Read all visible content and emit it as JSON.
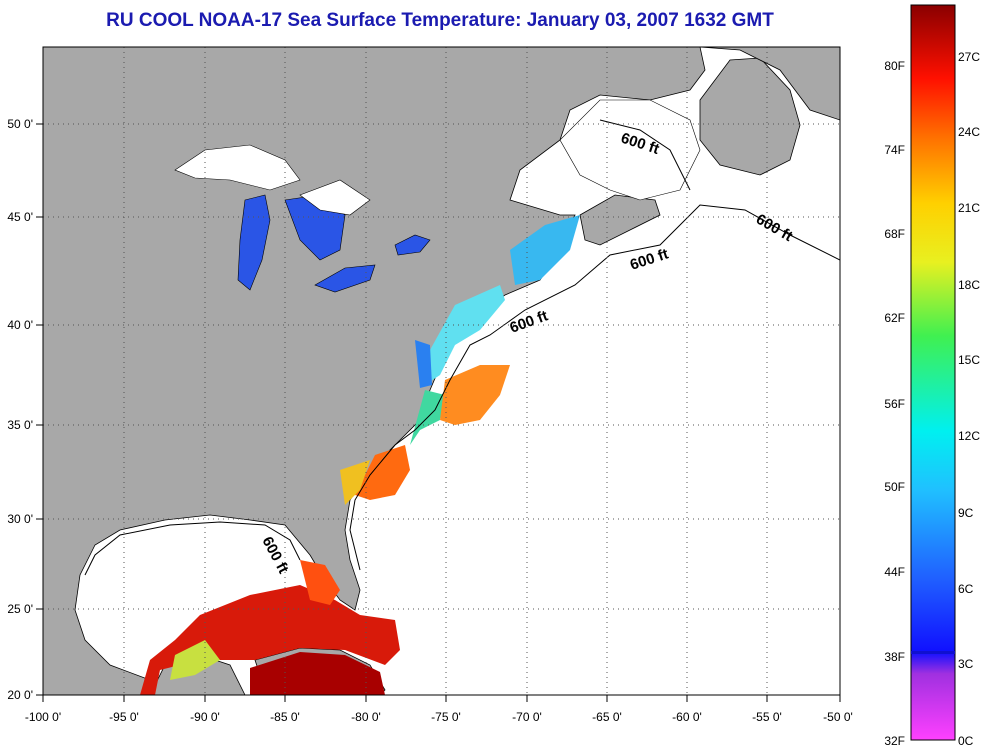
{
  "title": "RU COOL  NOAA-17  Sea Surface Temperature:  January 03, 2007 1632 GMT",
  "map": {
    "lon_ticks": [
      "-100 0'",
      "-95 0'",
      "-90 0'",
      "-85 0'",
      "-80 0'",
      "-75 0'",
      "-70 0'",
      "-65 0'",
      "-60 0'",
      "-55 0'",
      "-50 0'"
    ],
    "lat_ticks": [
      "50 0'",
      "45 0'",
      "40 0'",
      "35 0'",
      "30 0'",
      "25 0'",
      "20 0'"
    ],
    "contour_labels": [
      "600 ft",
      "600 ft",
      "600 ft",
      "600 ft",
      "600 ft"
    ],
    "land_color": "#a8a8a8",
    "ocean_nodata_color": "#ffffff"
  },
  "colorbar": {
    "fahrenheit_labels": [
      "80F",
      "74F",
      "68F",
      "62F",
      "56F",
      "50F",
      "44F",
      "38F",
      "32F"
    ],
    "celsius_labels": [
      "27C",
      "24C",
      "21C",
      "18C",
      "15C",
      "12C",
      "9C",
      "6C",
      "3C",
      "0C"
    ]
  }
}
